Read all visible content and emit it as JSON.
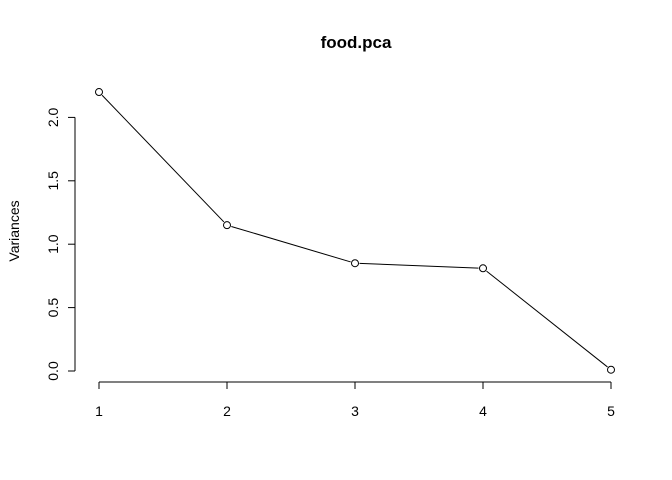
{
  "chart_data": {
    "type": "line",
    "title": "food.pca",
    "xlabel": "",
    "ylabel": "Variances",
    "x": [
      1,
      2,
      3,
      4,
      5
    ],
    "values": [
      2.2,
      1.15,
      0.85,
      0.81,
      0.01
    ],
    "xticks": [
      "1",
      "2",
      "3",
      "4",
      "5"
    ],
    "yticks": [
      "0.0",
      "0.5",
      "1.0",
      "1.5",
      "2.0"
    ],
    "xlim": [
      1,
      5
    ],
    "ylim": [
      0,
      2.2
    ],
    "grid": false,
    "point_style": "open-circle",
    "line_color": "#000000"
  }
}
